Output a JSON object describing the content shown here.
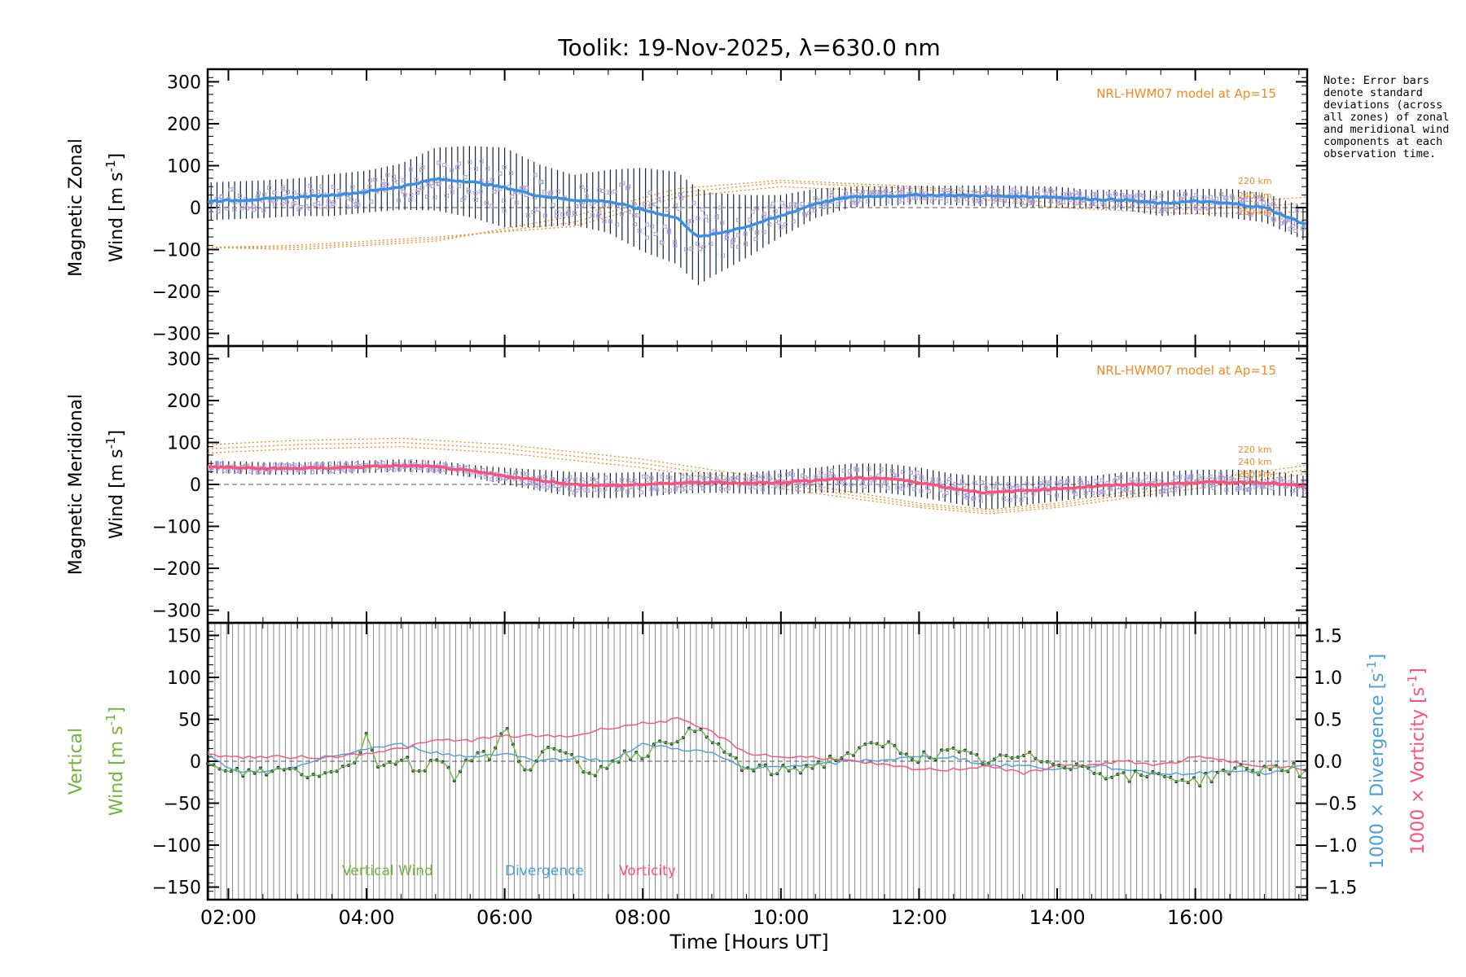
{
  "title": "Toolik: 19-Nov-2025, λ=630.0 nm",
  "note": "Note: Error bars denote standard deviations (across all zones) of zonal and meridional wind components at each observation time.",
  "colors": {
    "zonal_fit": "#3a8fe6",
    "meridional_fit": "#ff4f7b",
    "model": "#f08a24",
    "zone_points": "#a79bd6",
    "vertical": "#6fb63a",
    "divergence": "#4aa0d8",
    "vorticity": "#ff4f7b",
    "errorbar": "#10243a"
  },
  "chart_data": [
    {
      "type": "line",
      "panel": "zonal",
      "title": "Toolik: 19-Nov-2025, λ=630.0 nm",
      "ylabel_line1": "Magnetic Zonal",
      "ylabel_line2": "Wind [m s",
      "ylabel_unit_exp": "-1",
      "ylabel_close": "]",
      "ylim": [
        -330,
        330
      ],
      "yticks": [
        "300",
        "200",
        "100",
        "0",
        "−100",
        "−200",
        "−300"
      ],
      "ytick_values": [
        300,
        200,
        100,
        0,
        -100,
        -200,
        -300
      ],
      "model_label": "NRL-HWM07 model at Ap=15",
      "altitude_labels": [
        "220 km",
        "240 km",
        "260 km"
      ],
      "series": [
        {
          "name": "Zonal wind",
          "x": [
            1.7,
            2.5,
            3.0,
            3.5,
            4.0,
            4.5,
            5.0,
            5.5,
            6.0,
            6.5,
            7.0,
            7.5,
            8.0,
            8.5,
            8.8,
            9.0,
            9.5,
            10.0,
            10.5,
            11.0,
            12.0,
            13.0,
            14.0,
            14.5,
            15.0,
            15.5,
            16.0,
            16.5,
            17.0,
            17.6
          ],
          "values": [
            15,
            20,
            25,
            30,
            38,
            50,
            68,
            62,
            48,
            28,
            18,
            15,
            -5,
            -25,
            -70,
            -65,
            -45,
            -20,
            10,
            25,
            30,
            28,
            25,
            20,
            18,
            10,
            15,
            10,
            0,
            -40
          ],
          "errors": [
            45,
            45,
            45,
            50,
            50,
            55,
            75,
            85,
            95,
            75,
            60,
            75,
            100,
            110,
            115,
            100,
            75,
            50,
            35,
            25,
            22,
            25,
            25,
            22,
            25,
            30,
            30,
            35,
            35,
            40
          ]
        }
      ],
      "model_curves": [
        {
          "name": "220 km",
          "x": [
            1.7,
            3,
            5,
            7,
            8.5,
            10,
            12,
            14,
            16,
            17.6
          ],
          "values": [
            -95,
            -100,
            -80,
            -20,
            45,
            65,
            50,
            20,
            5,
            25
          ]
        },
        {
          "name": "240 km",
          "x": [
            1.7,
            3,
            5,
            7,
            8.5,
            10,
            12,
            14,
            16,
            17.6
          ],
          "values": [
            -95,
            -95,
            -75,
            -35,
            35,
            60,
            45,
            10,
            -5,
            10
          ]
        },
        {
          "name": "260 km",
          "x": [
            1.7,
            3,
            5,
            7,
            8.5,
            10,
            12,
            14,
            16,
            17.6
          ],
          "values": [
            -95,
            -90,
            -70,
            -45,
            25,
            50,
            35,
            0,
            -15,
            -10
          ]
        }
      ]
    },
    {
      "type": "line",
      "panel": "meridional",
      "ylabel_line1": "Magnetic Meridional",
      "ylabel_line2": "Wind [m s",
      "ylabel_unit_exp": "-1",
      "ylabel_close": "]",
      "ylim": [
        -330,
        330
      ],
      "yticks": [
        "300",
        "200",
        "100",
        "0",
        "−100",
        "−200",
        "−300"
      ],
      "ytick_values": [
        300,
        200,
        100,
        0,
        -100,
        -200,
        -300
      ],
      "model_label": "NRL-HWM07 model at Ap=15",
      "altitude_labels": [
        "220 km",
        "240 km",
        "260 km"
      ],
      "series": [
        {
          "name": "Meridional wind",
          "x": [
            1.7,
            2.5,
            3.0,
            3.5,
            4.0,
            4.5,
            5.0,
            5.5,
            6.0,
            6.5,
            7.0,
            7.5,
            8.0,
            8.5,
            9.0,
            9.5,
            10.0,
            10.5,
            11.0,
            11.5,
            12.0,
            12.5,
            13.0,
            13.5,
            14.0,
            14.5,
            15.0,
            15.5,
            16.0,
            16.5,
            17.0,
            17.6
          ],
          "values": [
            42,
            38,
            38,
            40,
            42,
            45,
            42,
            32,
            20,
            10,
            0,
            -3,
            0,
            3,
            5,
            3,
            5,
            10,
            15,
            15,
            5,
            -10,
            -20,
            -15,
            -10,
            -5,
            0,
            0,
            5,
            5,
            5,
            -5
          ],
          "errors": [
            15,
            15,
            15,
            15,
            15,
            15,
            15,
            15,
            20,
            25,
            30,
            30,
            30,
            25,
            25,
            25,
            30,
            30,
            35,
            35,
            35,
            35,
            40,
            35,
            30,
            25,
            30,
            30,
            30,
            30,
            30,
            25
          ]
        }
      ],
      "model_curves": [
        {
          "name": "220 km",
          "x": [
            1.7,
            3,
            4.5,
            6,
            8,
            10,
            12,
            13,
            14,
            16,
            17.6
          ],
          "values": [
            95,
            105,
            110,
            95,
            60,
            10,
            -45,
            -60,
            -45,
            10,
            45
          ]
        },
        {
          "name": "240 km",
          "x": [
            1.7,
            3,
            4.5,
            6,
            8,
            10,
            12,
            13,
            14,
            16,
            17.6
          ],
          "values": [
            85,
            95,
            100,
            85,
            50,
            0,
            -50,
            -65,
            -50,
            0,
            35
          ]
        },
        {
          "name": "260 km",
          "x": [
            1.7,
            3,
            4.5,
            6,
            8,
            10,
            12,
            13,
            14,
            16,
            17.6
          ],
          "values": [
            75,
            85,
            90,
            75,
            40,
            -10,
            -55,
            -70,
            -55,
            -10,
            25
          ]
        }
      ]
    },
    {
      "type": "line",
      "panel": "vertical",
      "ylabel_line1": "Vertical",
      "ylabel_line2": "Wind [m s",
      "ylabel_unit_exp": "-1",
      "ylabel_close": "]",
      "ylim": [
        -165,
        165
      ],
      "yticks": [
        "150",
        "100",
        "50",
        "0",
        "−50",
        "−100",
        "−150"
      ],
      "ytick_values": [
        150,
        100,
        50,
        0,
        -50,
        -100,
        -150
      ],
      "y2lim": [
        -1.65,
        1.65
      ],
      "y2ticks": [
        "1.5",
        "1.0",
        "0.5",
        "0.0",
        "−0.5",
        "−1.0",
        "−1.5"
      ],
      "y2tick_values": [
        1.5,
        1.0,
        0.5,
        0.0,
        -0.5,
        -1.0,
        -1.5
      ],
      "y2label_div": "1000 × Divergence [s",
      "y2label_vor": "1000 × Vorticity [s",
      "y2label_exp": "-1",
      "y2label_close": "]",
      "legend": [
        "Vertical Wind",
        "Divergence",
        "Vorticity"
      ],
      "series": [
        {
          "name": "Vertical Wind",
          "axis": "left",
          "x": [
            1.7,
            2.0,
            2.5,
            3.0,
            3.3,
            3.6,
            3.9,
            4.0,
            4.2,
            4.5,
            4.8,
            5.0,
            5.3,
            5.6,
            5.8,
            6.0,
            6.3,
            6.6,
            7.0,
            7.3,
            7.6,
            8.0,
            8.3,
            8.6,
            8.9,
            9.2,
            9.5,
            10.0,
            10.5,
            11.0,
            11.5,
            12.0,
            12.5,
            13.0,
            13.5,
            14.0,
            14.5,
            15.0,
            15.5,
            16.0,
            16.5,
            17.0,
            17.3,
            17.6
          ],
          "values": [
            -5,
            -15,
            -12,
            -10,
            -20,
            -5,
            5,
            35,
            -10,
            5,
            -15,
            10,
            -20,
            15,
            0,
            40,
            -10,
            15,
            0,
            -15,
            5,
            10,
            20,
            35,
            30,
            10,
            -10,
            -12,
            -5,
            10,
            20,
            5,
            10,
            0,
            5,
            0,
            -10,
            -20,
            -15,
            -25,
            -10,
            -10,
            -5,
            -15
          ]
        },
        {
          "name": "Divergence",
          "axis": "right",
          "x": [
            1.7,
            2.0,
            2.5,
            3.0,
            3.5,
            4.0,
            4.5,
            5.0,
            5.5,
            6.0,
            6.5,
            7.0,
            7.5,
            8.0,
            8.5,
            9.0,
            9.5,
            10.0,
            10.5,
            11.0,
            11.5,
            12.0,
            12.5,
            13.0,
            13.5,
            14.0,
            14.5,
            15.0,
            15.5,
            16.0,
            16.5,
            17.0,
            17.6
          ],
          "values": [
            0.1,
            -0.1,
            -0.15,
            -0.05,
            0.05,
            0.15,
            0.2,
            0.1,
            0.05,
            0.1,
            0.0,
            0.05,
            0.0,
            0.2,
            0.15,
            0.1,
            -0.1,
            -0.05,
            -0.05,
            0.0,
            0.02,
            0.05,
            0.05,
            -0.05,
            -0.05,
            -0.1,
            -0.05,
            -0.1,
            -0.15,
            -0.15,
            -0.1,
            -0.15,
            -0.05
          ]
        },
        {
          "name": "Vorticity",
          "axis": "right",
          "x": [
            1.7,
            2.0,
            2.5,
            3.0,
            3.5,
            4.0,
            4.5,
            5.0,
            5.5,
            6.0,
            6.5,
            7.0,
            7.5,
            8.0,
            8.5,
            9.0,
            9.5,
            10.0,
            10.5,
            11.0,
            11.5,
            12.0,
            12.5,
            13.0,
            13.5,
            14.0,
            14.5,
            15.0,
            15.5,
            16.0,
            16.5,
            17.0,
            17.6
          ],
          "values": [
            0.1,
            0.05,
            0.05,
            0.05,
            0.05,
            0.1,
            0.15,
            0.25,
            0.25,
            0.3,
            0.3,
            0.3,
            0.4,
            0.45,
            0.5,
            0.35,
            0.1,
            0.05,
            0.05,
            0.0,
            -0.05,
            -0.1,
            -0.1,
            -0.05,
            -0.15,
            -0.05,
            -0.05,
            0.0,
            -0.05,
            0.05,
            0.0,
            -0.05,
            -0.1
          ]
        }
      ]
    }
  ],
  "xaxis": {
    "label": "Time [Hours UT]",
    "xlim": [
      1.7,
      17.62
    ],
    "ticks": [
      "02:00",
      "04:00",
      "06:00",
      "08:00",
      "10:00",
      "12:00",
      "14:00",
      "16:00"
    ],
    "tick_values": [
      2,
      4,
      6,
      8,
      10,
      12,
      14,
      16
    ]
  }
}
